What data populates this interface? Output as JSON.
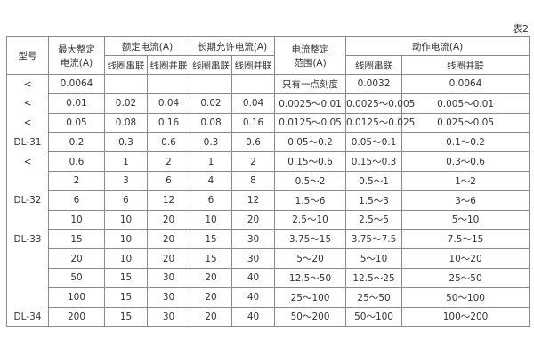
{
  "caption": "表2",
  "header": {
    "model": "型号",
    "max_setting": [
      "最大整定",
      "电流(A)"
    ],
    "rated_current": "额定电流(A)",
    "long_term_current": "长期允许电流(A)",
    "setting_range": [
      "电流整定",
      "范围(A)"
    ],
    "operating_current": "动作电流(A)",
    "series": "线圈串联",
    "parallel": "线圈并联"
  },
  "rows": [
    [
      "<",
      "0.0064",
      "",
      "",
      "",
      "",
      "只有一点刻度",
      "0.0032",
      "0.0064"
    ],
    [
      "<",
      "0.01",
      "0.02",
      "0.04",
      "0.02",
      "0.04",
      "0.0025～0.01",
      "0.0025～0.005",
      "0.005～0.01"
    ],
    [
      "<",
      "0.05",
      "0.08",
      "0.16",
      "0.08",
      "0.16",
      "0.0125～0.05",
      "0.0125～0.025",
      "0.025～0.05"
    ],
    [
      "DL-31",
      "0.2",
      "0.3",
      "0.6",
      "0.3",
      "0.6",
      "0.05～0.2",
      "0.05～0.1",
      "0.1～0.2"
    ],
    [
      "<",
      "0.6",
      "1",
      "2",
      "1",
      "2",
      "0.15～0.6",
      "0.15～0.3",
      "0.3～0.6"
    ],
    [
      "",
      "2",
      "3",
      "6",
      "4",
      "8",
      "0.5～2",
      "0.5～1",
      "1～2"
    ],
    [
      "DL-32",
      "6",
      "6",
      "12",
      "6",
      "12",
      "1.5～6",
      "1.5～3",
      "3～6"
    ],
    [
      "",
      "10",
      "10",
      "20",
      "10",
      "20",
      "2.5～10",
      "2.5～5",
      "5～10"
    ],
    [
      "DL-33",
      "15",
      "10",
      "20",
      "15",
      "30",
      "3.75～15",
      "3.75～7.5",
      "7.5～15"
    ],
    [
      "",
      "20",
      "10",
      "20",
      "15",
      "30",
      "5～20",
      "5～10",
      "10～20"
    ],
    [
      "",
      "50",
      "15",
      "30",
      "20",
      "40",
      "12.5～50",
      "12.5～25",
      "25～50"
    ],
    [
      "",
      "100",
      "15",
      "30",
      "20",
      "40",
      "25～100",
      "25～50",
      "50～100"
    ],
    [
      "DL-34",
      "200",
      "15",
      "30",
      "20",
      "40",
      "50～200",
      "50～100",
      "100～200"
    ]
  ]
}
